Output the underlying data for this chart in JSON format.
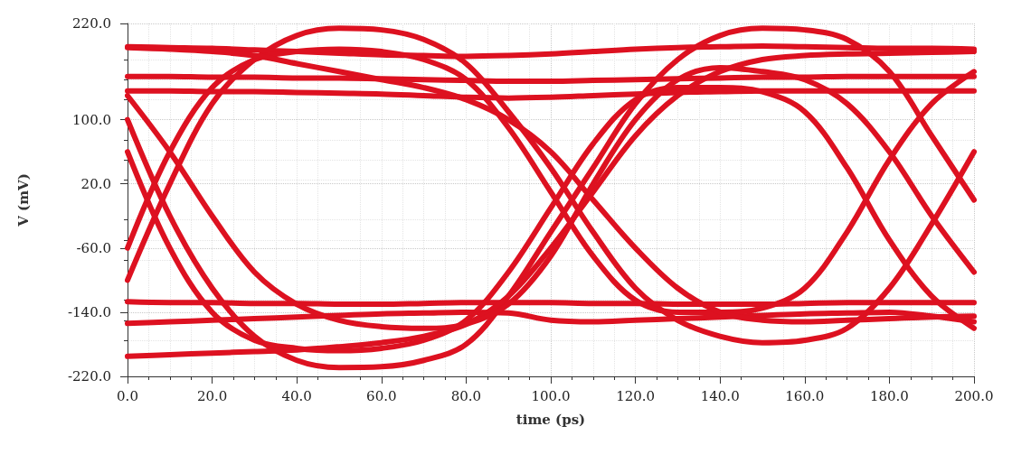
{
  "chart_data": {
    "type": "line",
    "xlabel": "time (ps)",
    "ylabel": "V (mV)",
    "x": [
      0,
      10,
      20,
      30,
      40,
      50,
      60,
      70,
      80,
      90,
      100,
      110,
      120,
      130,
      140,
      150,
      160,
      170,
      180,
      190,
      200
    ],
    "xlim": [
      0,
      200
    ],
    "xticks": [
      {
        "value": 0,
        "label": "0.0"
      },
      {
        "value": 20,
        "label": "20.0"
      },
      {
        "value": 40,
        "label": "40.0"
      },
      {
        "value": 60,
        "label": "60.0"
      },
      {
        "value": 80,
        "label": "80.0"
      },
      {
        "value": 100,
        "label": "100.0"
      },
      {
        "value": 120,
        "label": "120.0"
      },
      {
        "value": 140,
        "label": "140.0"
      },
      {
        "value": 160,
        "label": "160.0"
      },
      {
        "value": 180,
        "label": "180.0"
      },
      {
        "value": 200,
        "label": "200.0"
      }
    ],
    "ylim": [
      -220,
      220
    ],
    "yticks": [
      {
        "value": -220,
        "label": "-220.0"
      },
      {
        "value": -140,
        "label": "-140.0"
      },
      {
        "value": -60,
        "label": "-60.0"
      },
      {
        "value": 20,
        "label": "20.0"
      },
      {
        "value": 100,
        "label": "100.0"
      },
      {
        "value": 220,
        "label": "220.0"
      }
    ],
    "grid": true,
    "marker": "none",
    "line_style": "solid",
    "series": [
      {
        "color": "#dd1120",
        "values": [
          -100,
          20,
          120,
          175,
          205,
          214,
          212,
          200,
          170,
          110,
          40,
          -40,
          -110,
          -150,
          -170,
          -178,
          -175,
          -160,
          -110,
          -30,
          60
        ]
      },
      {
        "color": "#dd1120",
        "values": [
          100,
          -20,
          -110,
          -170,
          -200,
          -209,
          -208,
          -200,
          -180,
          -120,
          -40,
          40,
          120,
          175,
          205,
          214,
          212,
          200,
          160,
          80,
          0
        ]
      },
      {
        "color": "#dd1120",
        "values": [
          191,
          190,
          189,
          187,
          185,
          183,
          181,
          180,
          179,
          180,
          182,
          185,
          188,
          190,
          191,
          192,
          191,
          190,
          189,
          189,
          188
        ]
      },
      {
        "color": "#dd1120",
        "values": [
          154,
          154,
          153,
          153,
          152,
          152,
          151,
          150,
          149,
          148,
          148,
          149,
          150,
          151,
          152,
          153,
          153,
          154,
          154,
          154,
          154
        ]
      },
      {
        "color": "#dd1120",
        "values": [
          136,
          136,
          135,
          135,
          134,
          133,
          132,
          130,
          128,
          127,
          128,
          130,
          132,
          134,
          135,
          136,
          136,
          136,
          136,
          136,
          136
        ]
      },
      {
        "color": "#dd1120",
        "values": [
          -127,
          -128,
          -128,
          -129,
          -129,
          -130,
          -130,
          -129,
          -128,
          -128,
          -128,
          -129,
          -129,
          -130,
          -130,
          -130,
          -129,
          -128,
          -128,
          -128,
          -128
        ]
      },
      {
        "color": "#dd1120",
        "values": [
          -154,
          -152,
          -150,
          -148,
          -146,
          -144,
          -142,
          -141,
          -140,
          -141,
          -150,
          -152,
          -150,
          -148,
          -146,
          -144,
          -142,
          -141,
          -140,
          -145,
          -152
        ]
      },
      {
        "color": "#dd1120",
        "values": [
          -60,
          60,
          140,
          175,
          185,
          188,
          185,
          175,
          150,
          90,
          10,
          -70,
          -125,
          -140,
          -140,
          -135,
          -110,
          -40,
          50,
          120,
          160
        ]
      },
      {
        "color": "#dd1120",
        "values": [
          60,
          -60,
          -140,
          -175,
          -185,
          -188,
          -185,
          -175,
          -150,
          -90,
          -10,
          70,
          125,
          140,
          140,
          135,
          110,
          40,
          -50,
          -120,
          -160
        ]
      },
      {
        "color": "#dd1120",
        "values": [
          190,
          188,
          185,
          180,
          170,
          160,
          150,
          140,
          125,
          100,
          60,
          0,
          -60,
          -110,
          -140,
          -150,
          -152,
          -150,
          -148,
          -146,
          -145
        ]
      },
      {
        "color": "#dd1120",
        "values": [
          -195,
          -193,
          -191,
          -189,
          -187,
          -183,
          -178,
          -170,
          -155,
          -120,
          -60,
          10,
          80,
          130,
          160,
          175,
          180,
          182,
          183,
          184,
          185
        ]
      },
      {
        "color": "#dd1120",
        "values": [
          130,
          60,
          -20,
          -90,
          -130,
          -150,
          -158,
          -160,
          -155,
          -130,
          -70,
          20,
          100,
          150,
          165,
          160,
          150,
          120,
          60,
          -20,
          -90
        ]
      }
    ]
  }
}
